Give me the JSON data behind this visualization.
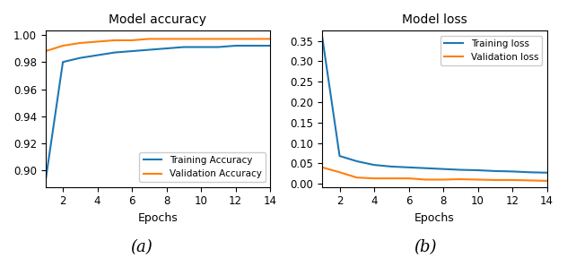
{
  "acc_train": [
    0.893,
    0.98,
    0.983,
    0.985,
    0.987,
    0.988,
    0.989,
    0.99,
    0.991,
    0.991,
    0.991,
    0.992,
    0.992,
    0.992
  ],
  "acc_val": [
    0.988,
    0.992,
    0.994,
    0.995,
    0.996,
    0.996,
    0.997,
    0.997,
    0.997,
    0.997,
    0.997,
    0.997,
    0.997,
    0.997
  ],
  "loss_train": [
    0.358,
    0.068,
    0.055,
    0.046,
    0.042,
    0.04,
    0.038,
    0.036,
    0.034,
    0.033,
    0.031,
    0.03,
    0.028,
    0.027
  ],
  "loss_val": [
    0.04,
    0.028,
    0.015,
    0.013,
    0.013,
    0.013,
    0.01,
    0.01,
    0.011,
    0.01,
    0.009,
    0.009,
    0.008,
    0.007
  ],
  "epochs": [
    1,
    2,
    3,
    4,
    5,
    6,
    7,
    8,
    9,
    10,
    11,
    12,
    13,
    14
  ],
  "title_acc": "Model accuracy",
  "title_loss": "Model loss",
  "xlabel": "Epochs",
  "legend_acc": [
    "Training Accuracy",
    "Validation Accuracy"
  ],
  "legend_loss": [
    "Training loss",
    "Validation loss"
  ],
  "label_a": "(a)",
  "label_b": "(b)",
  "color_blue": "#1f77b4",
  "color_orange": "#ff7f0e",
  "ylim_acc": [
    0.888,
    1.003
  ],
  "ylim_loss": [
    -0.008,
    0.375
  ],
  "yticks_acc": [
    0.9,
    0.92,
    0.94,
    0.96,
    0.98,
    1.0
  ],
  "yticks_loss": [
    0.0,
    0.05,
    0.1,
    0.15,
    0.2,
    0.25,
    0.3,
    0.35
  ],
  "xticks": [
    2,
    4,
    6,
    8,
    10,
    12,
    14
  ],
  "xlim": [
    1,
    14
  ]
}
